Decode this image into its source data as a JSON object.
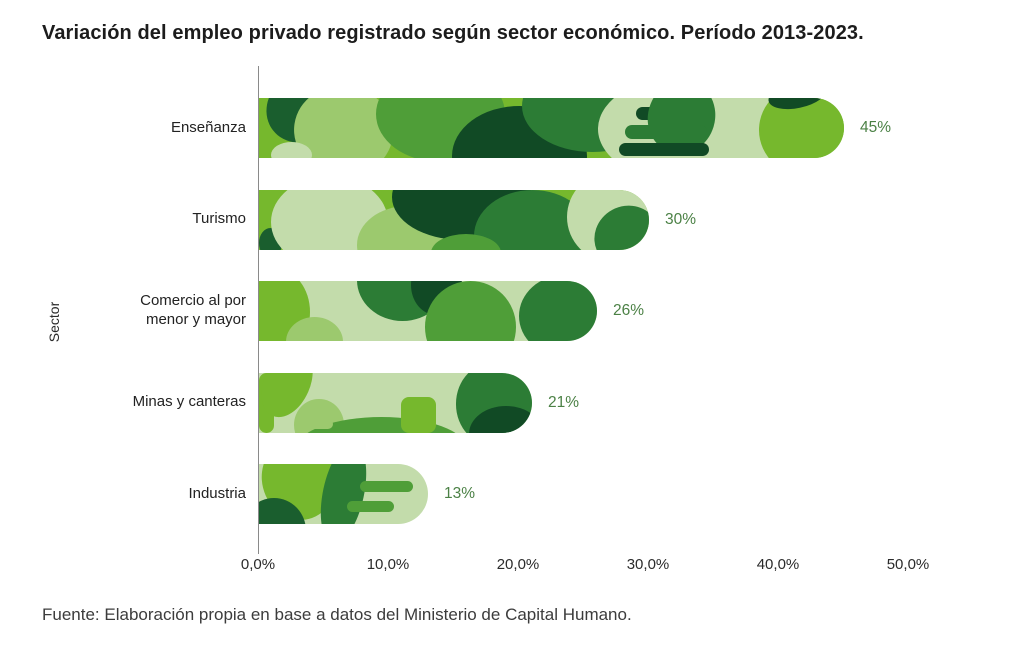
{
  "title": "Variación del empleo privado registrado según sector económico. Período 2013-2023.",
  "source": "Fuente: Elaboración propia en base a datos del Ministerio de Capital Humano.",
  "chart_data": {
    "type": "bar",
    "orientation": "horizontal",
    "title": "Variación del empleo privado registrado según sector económico. Período 2013-2023.",
    "ylabel": "Sector",
    "xlabel": "",
    "categories": [
      "Enseñanza",
      "Turismo",
      "Comercio al por menor y mayor",
      "Minas y canteras",
      "Industria"
    ],
    "values": [
      45,
      30,
      26,
      21,
      13
    ],
    "value_labels": [
      "45%",
      "30%",
      "26%",
      "21%",
      "13%"
    ],
    "x_ticks": [
      "0,0%",
      "10,0%",
      "20,0%",
      "30,0%",
      "40,0%",
      "50,0%"
    ],
    "xlim": [
      0,
      50
    ],
    "grid": false,
    "legend": "none",
    "value_label_color": "#4b8145",
    "palette": {
      "pale": "#c3dcab",
      "light": "#9cc96e",
      "bright": "#76b82d",
      "mid": "#4f9e38",
      "forest": "#2c7c35",
      "dark": "#1a5e2e",
      "deep": "#114a25"
    }
  }
}
